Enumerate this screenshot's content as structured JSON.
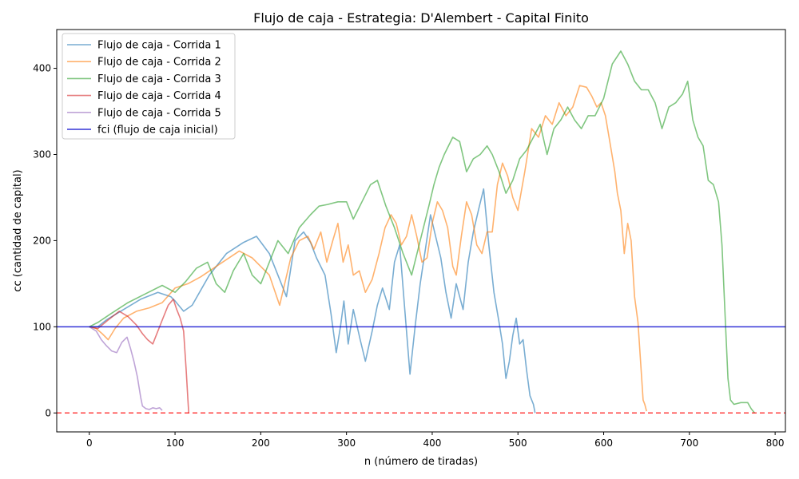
{
  "chart_data": {
    "type": "line",
    "title": "Flujo de caja - Estrategia: D'Alembert - Capital Finito",
    "xlabel": "n (número de tiradas)",
    "ylabel": "cc (cantidad de capital)",
    "xlim": [
      -38,
      812
    ],
    "ylim": [
      -22,
      445
    ],
    "x_ticks": [
      0,
      100,
      200,
      300,
      400,
      500,
      600,
      700,
      800
    ],
    "y_ticks": [
      0,
      100,
      200,
      300,
      400
    ],
    "grid": false,
    "legend_position": "upper left",
    "series": [
      {
        "name": "Flujo de caja - Corrida 1",
        "color": "#1f77b4",
        "points": [
          [
            0,
            100
          ],
          [
            10,
            100
          ],
          [
            20,
            108
          ],
          [
            40,
            120
          ],
          [
            60,
            132
          ],
          [
            80,
            140
          ],
          [
            95,
            135
          ],
          [
            100,
            130
          ],
          [
            110,
            118
          ],
          [
            120,
            125
          ],
          [
            140,
            160
          ],
          [
            160,
            185
          ],
          [
            180,
            198
          ],
          [
            195,
            205
          ],
          [
            210,
            185
          ],
          [
            220,
            160
          ],
          [
            230,
            135
          ],
          [
            240,
            200
          ],
          [
            250,
            210
          ],
          [
            258,
            198
          ],
          [
            265,
            180
          ],
          [
            275,
            160
          ],
          [
            282,
            115
          ],
          [
            288,
            70
          ],
          [
            293,
            100
          ],
          [
            297,
            130
          ],
          [
            302,
            80
          ],
          [
            308,
            120
          ],
          [
            316,
            85
          ],
          [
            322,
            60
          ],
          [
            330,
            95
          ],
          [
            336,
            125
          ],
          [
            342,
            145
          ],
          [
            350,
            120
          ],
          [
            356,
            175
          ],
          [
            362,
            195
          ],
          [
            368,
            120
          ],
          [
            374,
            45
          ],
          [
            380,
            100
          ],
          [
            386,
            150
          ],
          [
            392,
            190
          ],
          [
            398,
            230
          ],
          [
            404,
            205
          ],
          [
            410,
            180
          ],
          [
            416,
            140
          ],
          [
            422,
            110
          ],
          [
            428,
            150
          ],
          [
            436,
            120
          ],
          [
            442,
            175
          ],
          [
            448,
            210
          ],
          [
            455,
            240
          ],
          [
            460,
            260
          ],
          [
            466,
            195
          ],
          [
            472,
            140
          ],
          [
            478,
            105
          ],
          [
            482,
            80
          ],
          [
            486,
            40
          ],
          [
            490,
            60
          ],
          [
            494,
            90
          ],
          [
            498,
            110
          ],
          [
            502,
            80
          ],
          [
            506,
            85
          ],
          [
            510,
            50
          ],
          [
            514,
            20
          ],
          [
            518,
            10
          ],
          [
            520,
            0
          ]
        ]
      },
      {
        "name": "Flujo de caja - Corrida 2",
        "color": "#ff7f0e",
        "points": [
          [
            0,
            100
          ],
          [
            8,
            98
          ],
          [
            15,
            92
          ],
          [
            22,
            85
          ],
          [
            30,
            98
          ],
          [
            40,
            110
          ],
          [
            55,
            118
          ],
          [
            70,
            122
          ],
          [
            85,
            128
          ],
          [
            100,
            145
          ],
          [
            115,
            150
          ],
          [
            130,
            158
          ],
          [
            145,
            168
          ],
          [
            160,
            178
          ],
          [
            175,
            188
          ],
          [
            190,
            180
          ],
          [
            200,
            170
          ],
          [
            210,
            160
          ],
          [
            222,
            125
          ],
          [
            235,
            180
          ],
          [
            245,
            200
          ],
          [
            255,
            205
          ],
          [
            262,
            190
          ],
          [
            270,
            210
          ],
          [
            277,
            175
          ],
          [
            284,
            200
          ],
          [
            290,
            220
          ],
          [
            296,
            175
          ],
          [
            302,
            195
          ],
          [
            308,
            160
          ],
          [
            315,
            165
          ],
          [
            322,
            140
          ],
          [
            330,
            155
          ],
          [
            338,
            185
          ],
          [
            345,
            215
          ],
          [
            352,
            230
          ],
          [
            358,
            220
          ],
          [
            364,
            195
          ],
          [
            370,
            205
          ],
          [
            376,
            230
          ],
          [
            382,
            205
          ],
          [
            388,
            175
          ],
          [
            394,
            180
          ],
          [
            400,
            220
          ],
          [
            406,
            245
          ],
          [
            412,
            235
          ],
          [
            418,
            215
          ],
          [
            424,
            170
          ],
          [
            428,
            160
          ],
          [
            434,
            205
          ],
          [
            440,
            245
          ],
          [
            446,
            230
          ],
          [
            452,
            195
          ],
          [
            458,
            185
          ],
          [
            464,
            210
          ],
          [
            470,
            210
          ],
          [
            476,
            265
          ],
          [
            482,
            290
          ],
          [
            488,
            275
          ],
          [
            494,
            250
          ],
          [
            500,
            235
          ],
          [
            508,
            280
          ],
          [
            516,
            330
          ],
          [
            524,
            320
          ],
          [
            532,
            345
          ],
          [
            540,
            335
          ],
          [
            548,
            360
          ],
          [
            556,
            345
          ],
          [
            564,
            355
          ],
          [
            572,
            380
          ],
          [
            580,
            378
          ],
          [
            586,
            368
          ],
          [
            592,
            355
          ],
          [
            597,
            360
          ],
          [
            602,
            345
          ],
          [
            608,
            310
          ],
          [
            613,
            280
          ],
          [
            616,
            255
          ],
          [
            620,
            235
          ],
          [
            624,
            185
          ],
          [
            628,
            220
          ],
          [
            632,
            200
          ],
          [
            636,
            135
          ],
          [
            640,
            105
          ],
          [
            643,
            60
          ],
          [
            646,
            15
          ],
          [
            648,
            10
          ],
          [
            650,
            2
          ]
        ]
      },
      {
        "name": "Flujo de caja - Corrida 3",
        "color": "#2ca02c",
        "points": [
          [
            0,
            100
          ],
          [
            10,
            105
          ],
          [
            25,
            115
          ],
          [
            45,
            128
          ],
          [
            65,
            138
          ],
          [
            85,
            148
          ],
          [
            100,
            140
          ],
          [
            112,
            152
          ],
          [
            125,
            168
          ],
          [
            138,
            175
          ],
          [
            148,
            150
          ],
          [
            158,
            140
          ],
          [
            168,
            165
          ],
          [
            180,
            185
          ],
          [
            190,
            160
          ],
          [
            200,
            150
          ],
          [
            210,
            175
          ],
          [
            220,
            200
          ],
          [
            232,
            185
          ],
          [
            245,
            215
          ],
          [
            258,
            230
          ],
          [
            268,
            240
          ],
          [
            278,
            242
          ],
          [
            290,
            245
          ],
          [
            300,
            245
          ],
          [
            308,
            225
          ],
          [
            318,
            245
          ],
          [
            328,
            265
          ],
          [
            336,
            270
          ],
          [
            346,
            240
          ],
          [
            356,
            215
          ],
          [
            366,
            185
          ],
          [
            376,
            160
          ],
          [
            386,
            200
          ],
          [
            396,
            240
          ],
          [
            402,
            265
          ],
          [
            408,
            285
          ],
          [
            414,
            300
          ],
          [
            424,
            320
          ],
          [
            432,
            315
          ],
          [
            440,
            280
          ],
          [
            448,
            295
          ],
          [
            456,
            300
          ],
          [
            464,
            310
          ],
          [
            470,
            300
          ],
          [
            478,
            280
          ],
          [
            486,
            255
          ],
          [
            494,
            270
          ],
          [
            502,
            295
          ],
          [
            510,
            305
          ],
          [
            518,
            320
          ],
          [
            526,
            335
          ],
          [
            534,
            300
          ],
          [
            542,
            330
          ],
          [
            550,
            340
          ],
          [
            558,
            355
          ],
          [
            566,
            340
          ],
          [
            574,
            330
          ],
          [
            582,
            345
          ],
          [
            590,
            345
          ],
          [
            600,
            365
          ],
          [
            610,
            405
          ],
          [
            620,
            420
          ],
          [
            628,
            405
          ],
          [
            636,
            385
          ],
          [
            644,
            375
          ],
          [
            652,
            375
          ],
          [
            660,
            360
          ],
          [
            668,
            330
          ],
          [
            676,
            355
          ],
          [
            684,
            360
          ],
          [
            692,
            370
          ],
          [
            698,
            385
          ],
          [
            704,
            340
          ],
          [
            710,
            320
          ],
          [
            716,
            310
          ],
          [
            722,
            270
          ],
          [
            728,
            265
          ],
          [
            734,
            245
          ],
          [
            738,
            195
          ],
          [
            742,
            105
          ],
          [
            745,
            40
          ],
          [
            748,
            15
          ],
          [
            752,
            10
          ],
          [
            760,
            12
          ],
          [
            768,
            12
          ],
          [
            772,
            5
          ],
          [
            776,
            0
          ]
        ]
      },
      {
        "name": "Flujo de caja - Corrida 4",
        "color": "#d62728",
        "points": [
          [
            0,
            100
          ],
          [
            10,
            98
          ],
          [
            22,
            108
          ],
          [
            35,
            118
          ],
          [
            45,
            112
          ],
          [
            55,
            102
          ],
          [
            62,
            92
          ],
          [
            68,
            85
          ],
          [
            74,
            80
          ],
          [
            80,
            95
          ],
          [
            86,
            110
          ],
          [
            92,
            125
          ],
          [
            98,
            132
          ],
          [
            102,
            120
          ],
          [
            106,
            110
          ],
          [
            110,
            95
          ],
          [
            113,
            50
          ],
          [
            115,
            15
          ],
          [
            116,
            0
          ]
        ]
      },
      {
        "name": "Flujo de caja - Corrida 5",
        "color": "#9467bd",
        "points": [
          [
            0,
            100
          ],
          [
            8,
            95
          ],
          [
            14,
            85
          ],
          [
            20,
            78
          ],
          [
            26,
            72
          ],
          [
            32,
            70
          ],
          [
            38,
            82
          ],
          [
            44,
            88
          ],
          [
            48,
            75
          ],
          [
            52,
            60
          ],
          [
            56,
            42
          ],
          [
            58,
            30
          ],
          [
            60,
            18
          ],
          [
            62,
            8
          ],
          [
            66,
            5
          ],
          [
            70,
            4
          ],
          [
            74,
            6
          ],
          [
            78,
            5
          ],
          [
            82,
            6
          ],
          [
            85,
            3
          ]
        ]
      },
      {
        "name": "fci (flujo de caja inicial)",
        "color": "#0000cc",
        "type": "hline",
        "value": 100
      }
    ],
    "zero_line": {
      "value": 0,
      "color": "#ff0000",
      "style": "dashed"
    }
  }
}
